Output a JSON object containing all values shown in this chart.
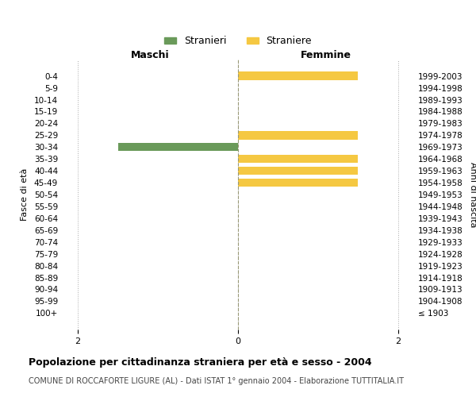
{
  "age_groups": [
    "100+",
    "95-99",
    "90-94",
    "85-89",
    "80-84",
    "75-79",
    "70-74",
    "65-69",
    "60-64",
    "55-59",
    "50-54",
    "45-49",
    "40-44",
    "35-39",
    "30-34",
    "25-29",
    "20-24",
    "15-19",
    "10-14",
    "5-9",
    "0-4"
  ],
  "birth_years": [
    "≤ 1903",
    "1904-1908",
    "1909-1913",
    "1914-1918",
    "1919-1923",
    "1924-1928",
    "1929-1933",
    "1934-1938",
    "1939-1943",
    "1944-1948",
    "1949-1953",
    "1954-1958",
    "1959-1963",
    "1964-1968",
    "1969-1973",
    "1974-1978",
    "1979-1983",
    "1984-1988",
    "1989-1993",
    "1994-1998",
    "1999-2003"
  ],
  "males": [
    0,
    0,
    0,
    0,
    0,
    0,
    0,
    0,
    0,
    0,
    0,
    0,
    0,
    0,
    1.5,
    0,
    0,
    0,
    0,
    0,
    0
  ],
  "females": [
    0,
    0,
    0,
    0,
    0,
    0,
    0,
    0,
    0,
    0,
    0,
    1.5,
    1.5,
    1.5,
    0,
    1.5,
    0,
    0,
    0,
    0,
    1.5
  ],
  "male_color": "#6a9a5a",
  "female_color": "#f5c842",
  "xlim": 2.2,
  "title": "Popolazione per cittadinanza straniera per età e sesso - 2004",
  "subtitle": "COMUNE DI ROCCAFORTE LIGURE (AL) - Dati ISTAT 1° gennaio 2004 - Elaborazione TUTTITALIA.IT",
  "ylabel_left": "Fasce di età",
  "ylabel_right": "Anni di nascita",
  "legend_male": "Stranieri",
  "legend_female": "Straniere",
  "header_male": "Maschi",
  "header_female": "Femmine"
}
